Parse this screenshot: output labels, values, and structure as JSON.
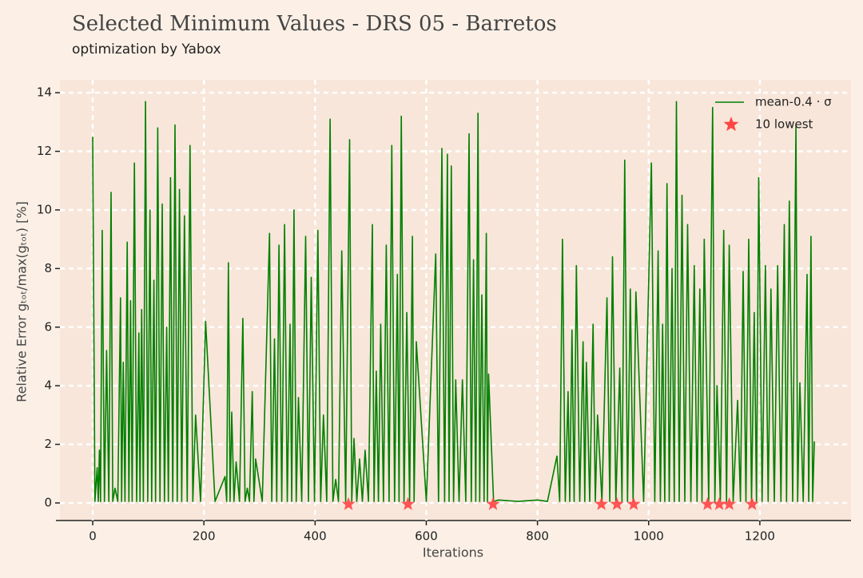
{
  "chart_data": {
    "type": "line",
    "title": "Selected Minimum Values - DRS 05 - Barretos",
    "subtitle": "optimization by Yabox",
    "x_label": "Iterations",
    "y_label": "Relative Error gₜₒₜ/max(gₜₒₜ) [%]",
    "xlim": [
      -59,
      1364
    ],
    "ylim": [
      -0.6,
      14.44
    ],
    "xticks": [
      0,
      200,
      400,
      600,
      800,
      1000,
      1200
    ],
    "yticks": [
      0,
      2,
      4,
      6,
      8,
      10,
      12,
      14
    ],
    "grid": true,
    "legend": "upper right",
    "series": [
      {
        "name": "mean-0.4 · σ",
        "color": "#008000",
        "type": "line",
        "x": [
          0,
          4,
          8,
          10,
          12,
          14,
          17,
          21,
          25,
          29,
          33,
          36,
          40,
          45,
          50,
          52,
          55,
          58,
          62,
          65,
          68,
          71,
          75,
          79,
          83,
          85,
          88,
          91,
          95,
          99,
          103,
          106,
          110,
          113,
          117,
          121,
          125,
          129,
          133,
          136,
          140,
          144,
          148,
          152,
          156,
          160,
          165,
          170,
          175,
          180,
          185,
          194,
          203,
          220,
          238,
          241,
          244,
          247,
          250,
          254,
          258,
          264,
          270,
          274,
          278,
          282,
          287,
          290,
          293,
          305,
          318,
          322,
          327,
          331,
          335,
          340,
          345,
          350,
          355,
          358,
          362,
          366,
          370,
          376,
          383,
          388,
          393,
          399,
          405,
          410,
          415,
          421,
          427,
          432,
          437,
          442,
          448,
          455,
          462,
          466,
          470,
          475,
          480,
          485,
          490,
          496,
          503,
          506,
          510,
          514,
          518,
          523,
          528,
          533,
          538,
          543,
          548,
          551,
          555,
          560,
          565,
          570,
          575,
          578,
          582,
          600,
          617,
          622,
          628,
          633,
          638,
          641,
          645,
          649,
          653,
          659,
          665,
          671,
          677,
          681,
          685,
          689,
          693,
          696,
          700,
          704,
          708,
          710,
          712,
          721,
          730,
          765,
          800,
          818,
          835,
          840,
          845,
          850,
          855,
          858,
          862,
          866,
          870,
          876,
          882,
          885,
          888,
          894,
          900,
          904,
          908,
          916,
          925,
          930,
          935,
          941,
          948,
          952,
          957,
          962,
          967,
          972,
          977,
          991,
          1005,
          1011,
          1017,
          1021,
          1025,
          1029,
          1033,
          1037,
          1042,
          1046,
          1050,
          1055,
          1060,
          1065,
          1070,
          1076,
          1082,
          1087,
          1092,
          1096,
          1100,
          1108,
          1115,
          1119,
          1123,
          1129,
          1135,
          1140,
          1145,
          1152,
          1160,
          1165,
          1170,
          1175,
          1180,
          1185,
          1190,
          1194,
          1198,
          1204,
          1210,
          1215,
          1220,
          1226,
          1232,
          1238,
          1244,
          1248,
          1253,
          1259,
          1265,
          1268,
          1272,
          1278,
          1285,
          1288,
          1292,
          1295,
          1298
        ],
        "values": [
          12.5,
          0.05,
          1.2,
          0.05,
          1.8,
          0.05,
          9.3,
          0.05,
          5.2,
          0.05,
          10.6,
          0.05,
          0.5,
          0.05,
          7,
          0.05,
          4.8,
          0.05,
          8.9,
          0.05,
          6.9,
          0.05,
          11.6,
          0.05,
          5.8,
          0.05,
          6.6,
          0.05,
          13.7,
          0.05,
          10,
          0.05,
          7.6,
          0.05,
          12.8,
          0.05,
          10.2,
          0.05,
          6,
          0.05,
          11.1,
          0.05,
          12.9,
          0.05,
          10.7,
          0.05,
          9.8,
          0.05,
          12.2,
          0.05,
          3,
          0.05,
          6.2,
          0.05,
          0.9,
          0.05,
          8.2,
          0.05,
          3.1,
          0.05,
          1.4,
          0.05,
          6.3,
          0.05,
          0.5,
          0.05,
          3.8,
          0.05,
          1.5,
          0.05,
          9.2,
          0.05,
          5.6,
          0.05,
          8.8,
          0.05,
          9.5,
          0.05,
          6.1,
          0.05,
          10,
          0.05,
          3.6,
          0.05,
          9.1,
          0.05,
          7.7,
          0.05,
          9.3,
          0.05,
          3,
          0.05,
          13.1,
          0.05,
          0.8,
          0.05,
          8.6,
          0.05,
          12.4,
          0.05,
          2.2,
          0.05,
          1.5,
          0.05,
          1.8,
          0.05,
          9.5,
          0.05,
          4.5,
          0.05,
          6.1,
          0.05,
          8.8,
          0.05,
          12.2,
          0.05,
          7.8,
          0.05,
          13.2,
          0.05,
          6.5,
          0.05,
          9.1,
          0.05,
          5.5,
          0.05,
          8.5,
          0.05,
          12.1,
          0.05,
          11.9,
          0.05,
          11.5,
          0.05,
          4.2,
          0.05,
          4.2,
          0.05,
          12.6,
          0.05,
          8.3,
          0.05,
          13.3,
          0.05,
          7.1,
          0.05,
          9.2,
          0.05,
          4.4,
          0.05,
          0.1,
          0.05,
          0.1,
          0.05,
          1.6,
          0.05,
          9,
          0.05,
          3.8,
          0.05,
          5.9,
          0.05,
          8.1,
          0.05,
          5.5,
          0.05,
          4.8,
          0.05,
          6.1,
          0.05,
          3,
          0.05,
          7,
          0.05,
          8.4,
          0.05,
          4.6,
          0.05,
          11.7,
          0.05,
          7.3,
          0.05,
          7.2,
          0.05,
          11.6,
          0.05,
          8.6,
          0.05,
          6.1,
          0.05,
          10.9,
          0.05,
          8,
          0.05,
          13.7,
          0.05,
          10.5,
          0.05,
          9.5,
          0.05,
          8.1,
          0.05,
          7.3,
          0.05,
          9,
          0.05,
          13.5,
          0.05,
          4,
          0.05,
          9.3,
          0.05,
          8.8,
          0.05,
          3.5,
          0.05,
          7.9,
          0.05,
          9,
          0.05,
          6.5,
          0.05,
          11.1,
          0.05,
          8.1,
          0.05,
          7.3,
          0.05,
          8.1,
          0.05,
          9.5,
          0.05,
          10.3,
          0.05,
          12.9,
          0.05,
          4.1,
          0.05,
          7.8,
          0.05,
          9.1,
          0.05,
          2.1
        ]
      },
      {
        "name": "10 lowest",
        "color": "#ff4444",
        "type": "scatter",
        "marker": "star",
        "x": [
          460,
          567,
          720,
          915,
          943,
          973,
          1106,
          1127,
          1145,
          1186
        ],
        "values": [
          0.01,
          0.01,
          0.01,
          0.01,
          0.01,
          0.01,
          0.01,
          0.01,
          0.01,
          0.01
        ]
      }
    ]
  }
}
